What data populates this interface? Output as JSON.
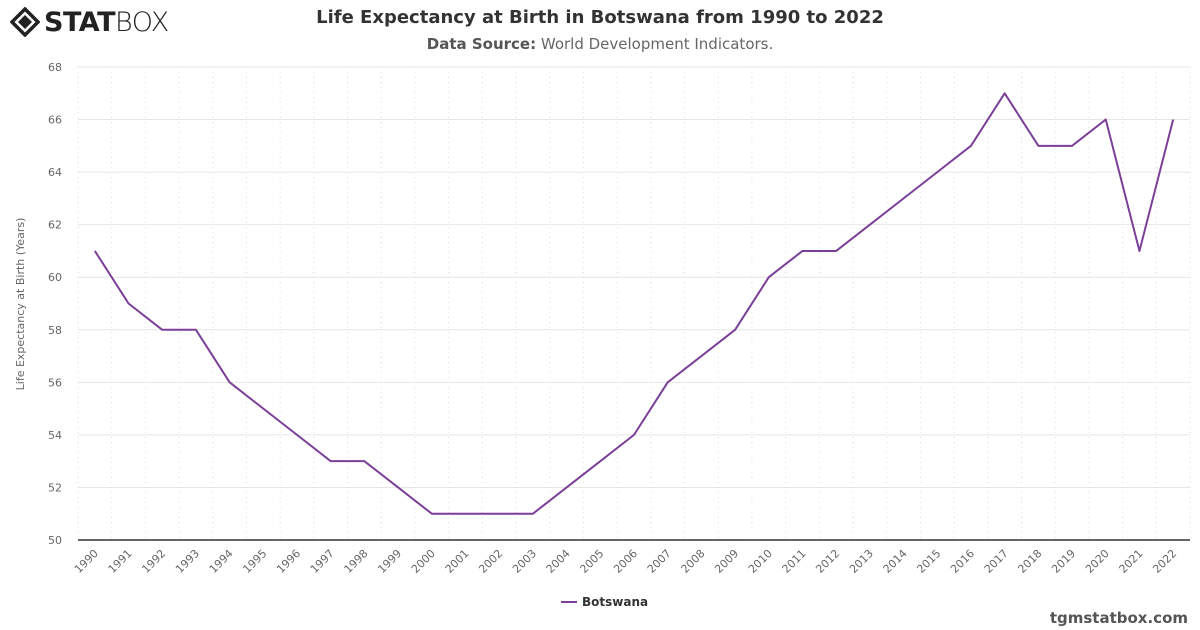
{
  "logo": {
    "text_bold": "STAT",
    "text_light": "BOX"
  },
  "header": {
    "title": "Life Expectancy at Birth in Botswana from 1990 to 2022",
    "subtitle_label": "Data Source:",
    "subtitle_value": "World Development Indicators."
  },
  "credit": "tgmstatbox.com",
  "colors": {
    "series": "#7b3f98",
    "grid": "#e6e6e6",
    "axis": "#333333"
  },
  "chart_data": {
    "type": "line",
    "title": "Life Expectancy at Birth in Botswana from 1990 to 2022",
    "xlabel": "",
    "ylabel": "Life Expectancy at Birth (Years)",
    "ylim": [
      50,
      68
    ],
    "yticks": [
      50,
      52,
      54,
      56,
      58,
      60,
      62,
      64,
      66,
      68
    ],
    "grid": true,
    "legend": "bottom-center",
    "categories": [
      "1990",
      "1991",
      "1992",
      "1993",
      "1994",
      "1995",
      "1996",
      "1997",
      "1998",
      "1999",
      "2000",
      "2001",
      "2002",
      "2003",
      "2004",
      "2005",
      "2006",
      "2007",
      "2008",
      "2009",
      "2010",
      "2011",
      "2012",
      "2013",
      "2014",
      "2015",
      "2016",
      "2017",
      "2018",
      "2019",
      "2020",
      "2021",
      "2022"
    ],
    "series": [
      {
        "name": "Botswana",
        "values": [
          61,
          59,
          58,
          58,
          56,
          55,
          54,
          53,
          53,
          52,
          51,
          51,
          51,
          51,
          52,
          53,
          54,
          56,
          57,
          58,
          60,
          61,
          61,
          62,
          63,
          64,
          65,
          67,
          65,
          65,
          66,
          61,
          66
        ]
      }
    ]
  }
}
